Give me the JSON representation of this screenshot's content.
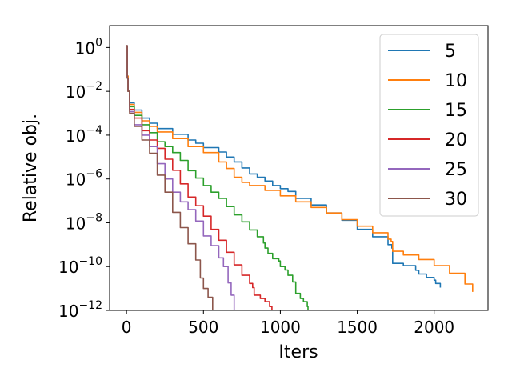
{
  "chart_data": {
    "type": "line",
    "title": "",
    "xlabel": "Iters",
    "ylabel": "Relative obj.",
    "xlim": [
      -110,
      2350
    ],
    "ylim": [
      1e-12,
      10
    ],
    "yscale": "log",
    "grid": false,
    "legend_position": "top-right",
    "x_ticks": [
      0,
      500,
      1000,
      1500,
      2000
    ],
    "x_tick_labels": [
      "0",
      "500",
      "1000",
      "1500",
      "2000"
    ],
    "y_ticks": [
      {
        "value": 1,
        "base": "10",
        "exp": "0"
      },
      {
        "value": 0.01,
        "base": "10",
        "exp": "−2"
      },
      {
        "value": 0.0001,
        "base": "10",
        "exp": "−4"
      },
      {
        "value": 1e-06,
        "base": "10",
        "exp": "−6"
      },
      {
        "value": 1e-08,
        "base": "10",
        "exp": "−8"
      },
      {
        "value": 1e-10,
        "base": "10",
        "exp": "−10"
      },
      {
        "value": 1e-12,
        "base": "10",
        "exp": "−12"
      }
    ],
    "series": [
      {
        "name": "5",
        "color": "#1f77b4",
        "points": [
          [
            0,
            1.2
          ],
          [
            5,
            0.05
          ],
          [
            10,
            0.01
          ],
          [
            20,
            0.003
          ],
          [
            50,
            0.0014
          ],
          [
            100,
            0.0006
          ],
          [
            150,
            0.00035
          ],
          [
            200,
            0.0002
          ],
          [
            300,
            0.00011
          ],
          [
            400,
            6e-05
          ],
          [
            450,
            4.3e-05
          ],
          [
            500,
            2.7e-05
          ],
          [
            600,
            1.7e-05
          ],
          [
            650,
            1e-05
          ],
          [
            700,
            6e-06
          ],
          [
            750,
            3.2e-06
          ],
          [
            800,
            1.7e-06
          ],
          [
            850,
            1.2e-06
          ],
          [
            900,
            8e-07
          ],
          [
            950,
            5e-07
          ],
          [
            1000,
            3.6e-07
          ],
          [
            1050,
            2.7e-07
          ],
          [
            1100,
            1.3e-07
          ],
          [
            1200,
            6.5e-08
          ],
          [
            1300,
            2.8e-08
          ],
          [
            1400,
            1.3e-08
          ],
          [
            1500,
            5e-09
          ],
          [
            1600,
            2.3e-09
          ],
          [
            1700,
            1e-09
          ],
          [
            1725,
            7e-10
          ],
          [
            1730,
            1.4e-10
          ],
          [
            1800,
            1.1e-10
          ],
          [
            1880,
            6.8e-11
          ],
          [
            1900,
            4.6e-11
          ],
          [
            1950,
            3.2e-11
          ],
          [
            2000,
            2.4e-11
          ],
          [
            2010,
            1.7e-11
          ],
          [
            2040,
            1.1e-11
          ]
        ]
      },
      {
        "name": "10",
        "color": "#ff7f0e",
        "points": [
          [
            0,
            1.2
          ],
          [
            5,
            0.05
          ],
          [
            10,
            0.01
          ],
          [
            20,
            0.0025
          ],
          [
            50,
            0.0011
          ],
          [
            100,
            0.00045
          ],
          [
            150,
            0.00025
          ],
          [
            200,
            0.00014
          ],
          [
            300,
            7e-05
          ],
          [
            400,
            3e-05
          ],
          [
            500,
            1.6e-05
          ],
          [
            600,
            6e-06
          ],
          [
            650,
            3e-06
          ],
          [
            700,
            1.2e-06
          ],
          [
            750,
            7e-07
          ],
          [
            800,
            5e-07
          ],
          [
            900,
            3e-07
          ],
          [
            1000,
            1.7e-07
          ],
          [
            1100,
            9e-08
          ],
          [
            1200,
            5e-08
          ],
          [
            1300,
            2.8e-08
          ],
          [
            1400,
            1.4e-08
          ],
          [
            1500,
            7e-09
          ],
          [
            1600,
            3.5e-09
          ],
          [
            1700,
            1.8e-09
          ],
          [
            1720,
            1.4e-09
          ],
          [
            1730,
            5e-10
          ],
          [
            1800,
            3.4e-10
          ],
          [
            1900,
            2.1e-10
          ],
          [
            2000,
            1.1e-10
          ],
          [
            2100,
            5e-11
          ],
          [
            2200,
            1.6e-11
          ],
          [
            2250,
            7e-12
          ]
        ]
      },
      {
        "name": "15",
        "color": "#2ca02c",
        "points": [
          [
            0,
            1.2
          ],
          [
            5,
            0.04
          ],
          [
            10,
            0.01
          ],
          [
            20,
            0.002
          ],
          [
            50,
            0.0008
          ],
          [
            100,
            0.0003
          ],
          [
            150,
            0.00013
          ],
          [
            200,
            5e-05
          ],
          [
            250,
            3e-05
          ],
          [
            300,
            1.6e-05
          ],
          [
            350,
            7e-06
          ],
          [
            400,
            2.4e-06
          ],
          [
            450,
            1.1e-06
          ],
          [
            500,
            5e-07
          ],
          [
            550,
            2.5e-07
          ],
          [
            600,
            1.3e-07
          ],
          [
            650,
            5.5e-08
          ],
          [
            700,
            2.3e-08
          ],
          [
            750,
            1.1e-08
          ],
          [
            800,
            4.7e-09
          ],
          [
            850,
            2.3e-09
          ],
          [
            890,
            1.2e-09
          ],
          [
            900,
            7e-10
          ],
          [
            920,
            4e-10
          ],
          [
            950,
            2.3e-10
          ],
          [
            990,
            1.8e-10
          ],
          [
            1000,
            1e-10
          ],
          [
            1030,
            7e-11
          ],
          [
            1050,
            4e-11
          ],
          [
            1080,
            2e-11
          ],
          [
            1100,
            6e-12
          ],
          [
            1130,
            3.5e-12
          ],
          [
            1150,
            2.5e-12
          ],
          [
            1175,
            1.5e-12
          ],
          [
            1180,
            1e-12
          ]
        ]
      },
      {
        "name": "20",
        "color": "#d62728",
        "points": [
          [
            0,
            1.2
          ],
          [
            5,
            0.04
          ],
          [
            10,
            0.01
          ],
          [
            20,
            0.0015
          ],
          [
            50,
            0.0006
          ],
          [
            100,
            0.00016
          ],
          [
            150,
            6e-05
          ],
          [
            200,
            2.5e-05
          ],
          [
            250,
            8e-06
          ],
          [
            300,
            2.5e-06
          ],
          [
            350,
            6e-07
          ],
          [
            400,
            1.5e-07
          ],
          [
            450,
            6e-08
          ],
          [
            500,
            2e-08
          ],
          [
            550,
            5e-09
          ],
          [
            600,
            1.6e-09
          ],
          [
            650,
            4.5e-10
          ],
          [
            700,
            1.2e-10
          ],
          [
            750,
            4e-11
          ],
          [
            800,
            1.7e-11
          ],
          [
            820,
            1.1e-11
          ],
          [
            830,
            5e-12
          ],
          [
            870,
            3.5e-12
          ],
          [
            900,
            2.5e-12
          ],
          [
            930,
            1.5e-12
          ],
          [
            945,
            1e-12
          ]
        ]
      },
      {
        "name": "25",
        "color": "#9467bd",
        "points": [
          [
            0,
            1.2
          ],
          [
            5,
            0.04
          ],
          [
            10,
            0.01
          ],
          [
            20,
            0.0012
          ],
          [
            50,
            0.0003
          ],
          [
            100,
            0.0001
          ],
          [
            150,
            3e-05
          ],
          [
            200,
            5e-06
          ],
          [
            250,
            1e-06
          ],
          [
            300,
            2.5e-07
          ],
          [
            350,
            9e-08
          ],
          [
            400,
            4e-08
          ],
          [
            450,
            1.2e-08
          ],
          [
            500,
            2.5e-09
          ],
          [
            550,
            9e-10
          ],
          [
            600,
            2.5e-10
          ],
          [
            630,
            1e-10
          ],
          [
            660,
            1.8e-11
          ],
          [
            680,
            5e-12
          ],
          [
            700,
            1e-12
          ]
        ]
      },
      {
        "name": "30",
        "color": "#8c564b",
        "points": [
          [
            0,
            1.2
          ],
          [
            5,
            0.04
          ],
          [
            10,
            0.01
          ],
          [
            20,
            0.001
          ],
          [
            50,
            0.00025
          ],
          [
            100,
            6e-05
          ],
          [
            150,
            1.5e-05
          ],
          [
            200,
            1.5e-06
          ],
          [
            250,
            2.5e-07
          ],
          [
            300,
            3e-08
          ],
          [
            350,
            6e-09
          ],
          [
            400,
            1.1e-09
          ],
          [
            450,
            2e-10
          ],
          [
            480,
            3e-11
          ],
          [
            500,
            1e-11
          ],
          [
            530,
            4e-12
          ],
          [
            560,
            1e-12
          ]
        ]
      }
    ]
  }
}
